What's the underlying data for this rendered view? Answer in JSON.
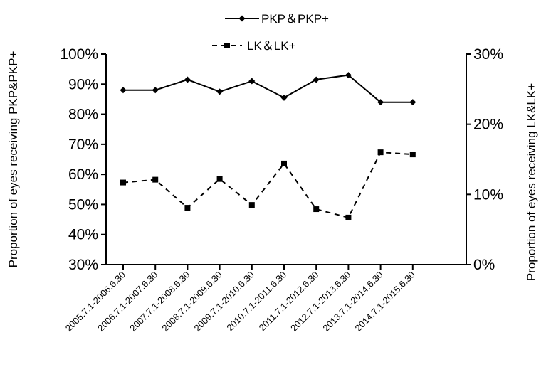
{
  "chart_data": {
    "type": "line",
    "categories": [
      "2005.7.1-2006.6.30",
      "2006.7.1-2007.6.30",
      "2007.7.1-2008.6.30",
      "2008.7.1-2009.6.30",
      "2009.7.1-2010.6.30",
      "2010.7.1-2011.6.30",
      "2011.7.1-2012.6.30",
      "2012.7.1-2013.6.30",
      "2013.7.1-2014.6.30",
      "2014.7.1-2015.6.30"
    ],
    "series": [
      {
        "name": "PKP＆PKP+",
        "axis": "left",
        "style": "solid",
        "marker": "diamond",
        "values": [
          88,
          88,
          91.5,
          87.5,
          91,
          85.5,
          91.5,
          93,
          84,
          84
        ]
      },
      {
        "name": "LK＆LK+",
        "axis": "right",
        "style": "dashed",
        "marker": "square",
        "values": [
          11.7,
          12.1,
          8.1,
          12.2,
          8.5,
          14.4,
          7.9,
          6.7,
          16,
          15.7
        ]
      }
    ],
    "ylabel_left": "Proportion of eyes receiving PKP&PKP+",
    "ylabel_right": "Proportion of eyes receiving LK&LK+",
    "ylim_left": [
      30,
      100
    ],
    "ylim_right": [
      0,
      30
    ],
    "yticks_left": [
      "30%",
      "40%",
      "50%",
      "60%",
      "70%",
      "80%",
      "90%",
      "100%"
    ],
    "yticks_right": [
      "0%",
      "10%",
      "20%",
      "30%"
    ],
    "grid": false,
    "legend_position": "top"
  }
}
